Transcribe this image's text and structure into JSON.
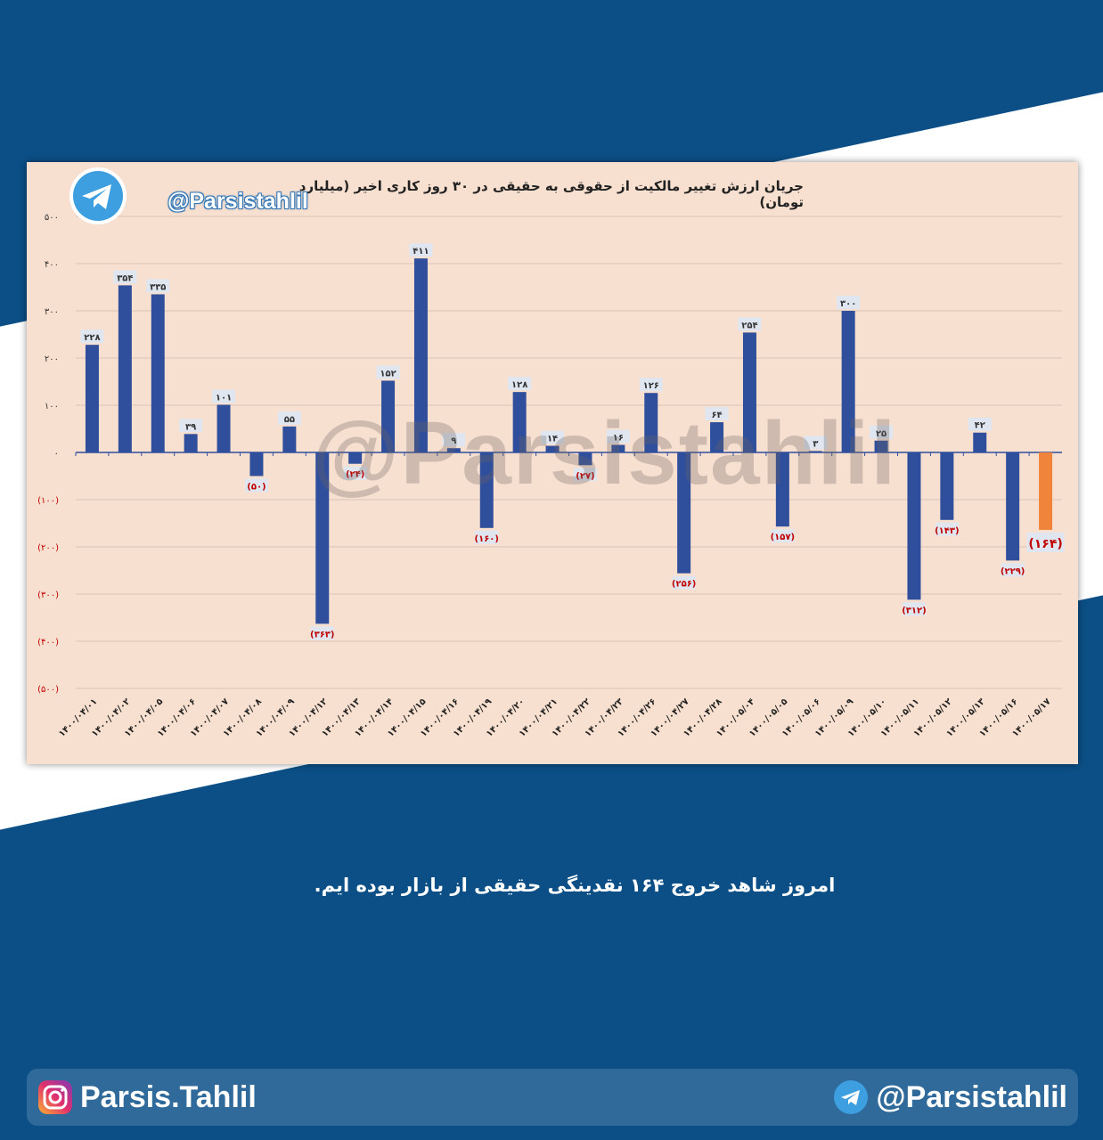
{
  "handle": "@Parsistahlil",
  "instagram": "Parsis.Tahlil",
  "caption": "امروز شاهد خروج ۱۶۴ نقدینگی حقیقی از بازار بوده ایم.",
  "watermark": "@Parsistahlil",
  "colors": {
    "background": "#0b4f86",
    "plot_area": "#f8e0d0",
    "bar": "#2f4f9c",
    "bar_highlight": "#f0843a",
    "negative_label": "#c00000"
  },
  "chart_data": {
    "type": "bar",
    "title": "جریان ارزش تغییر مالکیت از حقوقی به حقیقی در ۳۰ روز کاری اخیر (میلیارد تومان)",
    "ylim": [
      -500,
      500
    ],
    "y_ticks": [
      500,
      400,
      300,
      200,
      100,
      0,
      -100,
      -200,
      -300,
      -400,
      -500
    ],
    "y_tick_labels": [
      "۵۰۰",
      "۴۰۰",
      "۳۰۰",
      "۲۰۰",
      "۱۰۰",
      "۰",
      "(۱۰۰)",
      "(۲۰۰)",
      "(۳۰۰)",
      "(۴۰۰)",
      "(۵۰۰)"
    ],
    "grid": true,
    "categories": [
      "۱۴۰۰/۰۴/۰۱",
      "۱۴۰۰/۰۴/۰۲",
      "۱۴۰۰/۰۴/۰۵",
      "۱۴۰۰/۰۴/۰۶",
      "۱۴۰۰/۰۴/۰۷",
      "۱۴۰۰/۰۴/۰۸",
      "۱۴۰۰/۰۴/۰۹",
      "۱۴۰۰/۰۴/۱۲",
      "۱۴۰۰/۰۴/۱۳",
      "۱۴۰۰/۰۴/۱۴",
      "۱۴۰۰/۰۴/۱۵",
      "۱۴۰۰/۰۴/۱۶",
      "۱۴۰۰/۰۴/۱۹",
      "۱۴۰۰/۰۴/۲۰",
      "۱۴۰۰/۰۴/۲۱",
      "۱۴۰۰/۰۴/۲۲",
      "۱۴۰۰/۰۴/۲۳",
      "۱۴۰۰/۰۴/۲۶",
      "۱۴۰۰/۰۴/۲۷",
      "۱۴۰۰/۰۴/۲۸",
      "۱۴۰۰/۰۵/۰۴",
      "۱۴۰۰/۰۵/۰۵",
      "۱۴۰۰/۰۵/۰۶",
      "۱۴۰۰/۰۵/۰۹",
      "۱۴۰۰/۰۵/۱۰",
      "۱۴۰۰/۰۵/۱۱",
      "۱۴۰۰/۰۵/۱۲",
      "۱۴۰۰/۰۵/۱۳",
      "۱۴۰۰/۰۵/۱۶",
      "۱۴۰۰/۰۵/۱۷"
    ],
    "values": [
      228,
      354,
      335,
      39,
      101,
      -50,
      55,
      -363,
      -24,
      152,
      411,
      9,
      -160,
      128,
      14,
      -27,
      16,
      126,
      -256,
      64,
      254,
      -157,
      3,
      300,
      25,
      -312,
      -143,
      42,
      -229,
      -164
    ],
    "data_labels": [
      "۲۲۸",
      "۳۵۴",
      "۳۳۵",
      "۳۹",
      "۱۰۱",
      "(۵۰)",
      "۵۵",
      "(۳۶۳)",
      "(۲۴)",
      "۱۵۲",
      "۴۱۱",
      "۹",
      "(۱۶۰)",
      "۱۲۸",
      "۱۴",
      "(۲۷)",
      "۱۶",
      "۱۲۶",
      "(۲۵۶)",
      "۶۴",
      "۲۵۴",
      "(۱۵۷)",
      "۳",
      "۳۰۰",
      "۲۵",
      "(۳۱۲)",
      "(۱۴۳)",
      "۴۲",
      "(۲۲۹)",
      "(۱۶۴)"
    ],
    "highlight_index": 29
  }
}
